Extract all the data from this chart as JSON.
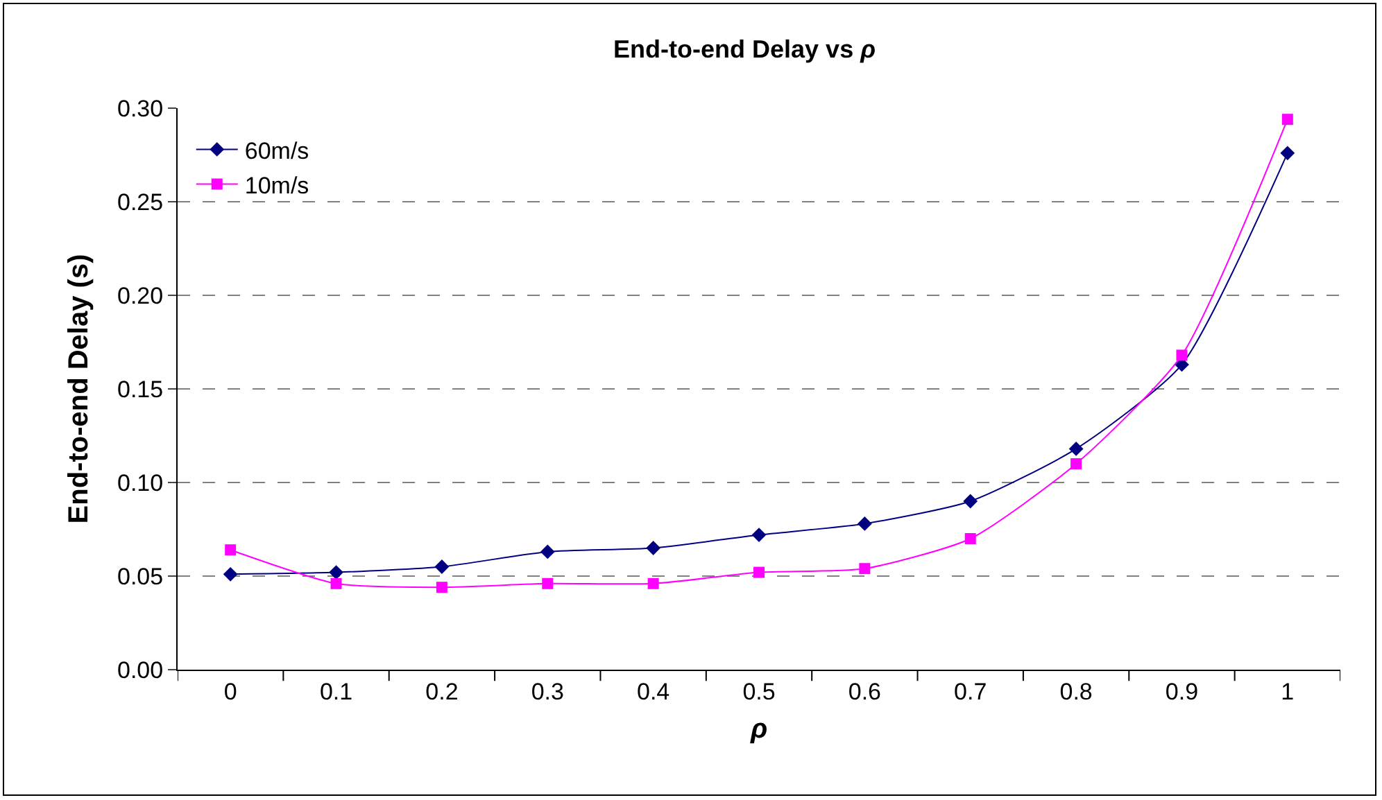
{
  "chart_data": {
    "type": "line",
    "title": "End-to-end Delay vs ρ",
    "xlabel": "ρ",
    "ylabel": "End-to-end Delay (s)",
    "categories": [
      "0",
      "0.1",
      "0.2",
      "0.3",
      "0.4",
      "0.5",
      "0.6",
      "0.7",
      "0.8",
      "0.9",
      "1"
    ],
    "series": [
      {
        "name": "60m/s",
        "color": "#000080",
        "marker": "diamond",
        "values": [
          0.051,
          0.052,
          0.055,
          0.063,
          0.065,
          0.072,
          0.078,
          0.09,
          0.118,
          0.163,
          0.276
        ]
      },
      {
        "name": "10m/s",
        "color": "#ff00ff",
        "marker": "square",
        "values": [
          0.064,
          0.046,
          0.044,
          0.046,
          0.046,
          0.052,
          0.054,
          0.07,
          0.11,
          0.168,
          0.294
        ]
      }
    ],
    "ylim": [
      0,
      0.3
    ],
    "yticks": [
      {
        "value": 0,
        "label": "0.00"
      },
      {
        "value": 0.05,
        "label": "0.05"
      },
      {
        "value": 0.1,
        "label": "0.10"
      },
      {
        "value": 0.15,
        "label": "0.15"
      },
      {
        "value": 0.2,
        "label": "0.20"
      },
      {
        "value": 0.25,
        "label": "0.25"
      },
      {
        "value": 0.3,
        "label": "0.30"
      }
    ],
    "grid": "y",
    "legend": "top left",
    "line_style": "solid"
  }
}
